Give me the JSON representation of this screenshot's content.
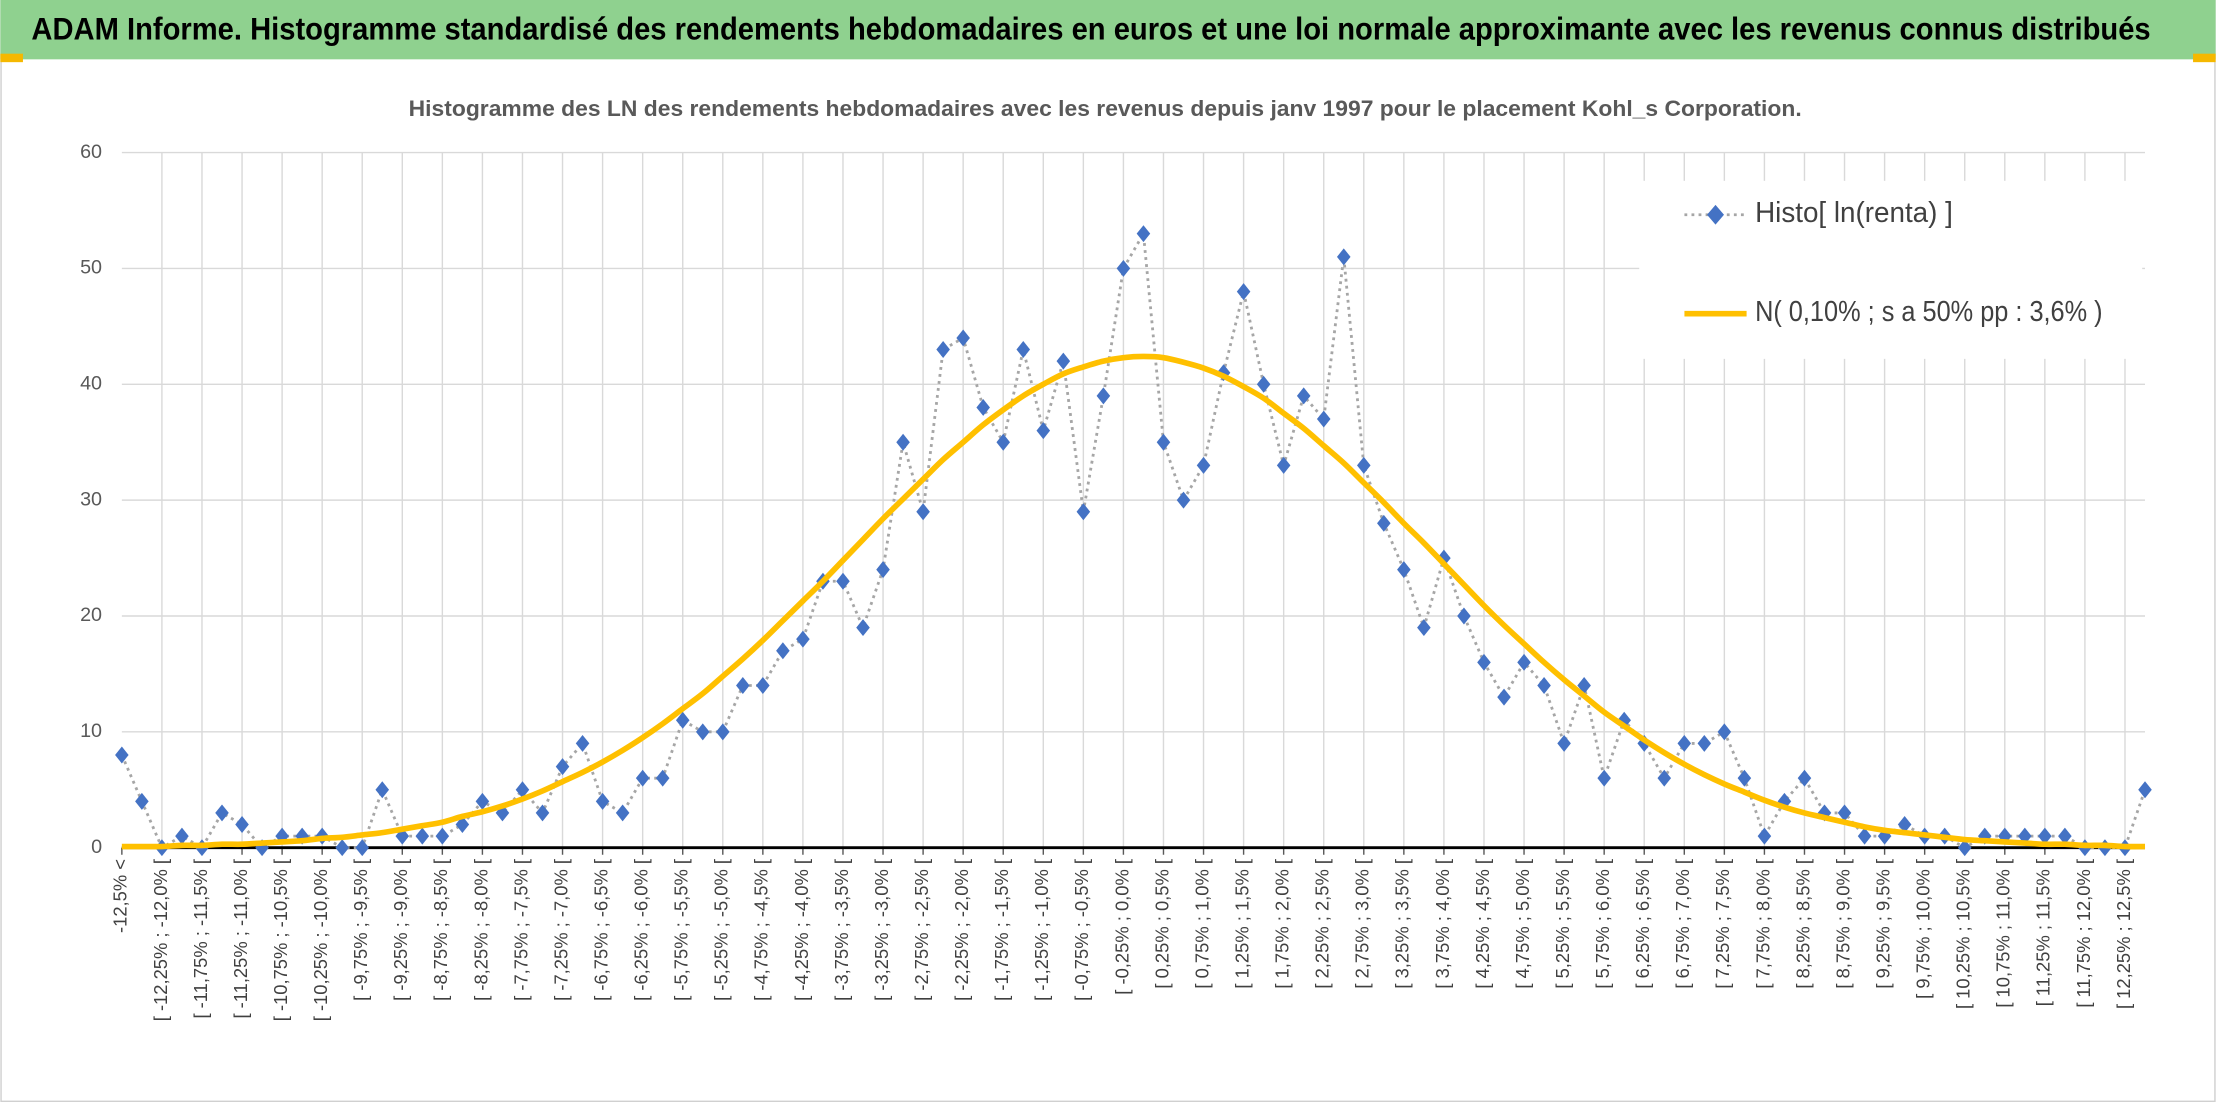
{
  "chart_data": {
    "type": "line",
    "header": "ADAM Informe. Histogramme standardisé des rendements hebdomadaires en euros et une loi normale approximante avec les revenus connus distribués",
    "title": "Histogramme des LN des rendements hebdomadaires avec les revenus depuis janv 1997 pour le placement Kohl_s Corporation.",
    "categories": [
      "-12,5% <",
      null,
      "[ -12,25% ; -12,0% [",
      null,
      "[ -11,75% ; -11,5% [",
      null,
      "[ -11,25% ; -11,0% [",
      null,
      "[ -10,75% ; -10,5% [",
      null,
      "[ -10,25% ; -10,0% [",
      null,
      "[ -9,75% ; -9,5% [",
      null,
      "[ -9,25% ; -9,0% [",
      null,
      "[ -8,75% ; -8,5% [",
      null,
      "[ -8,25% ; -8,0% [",
      null,
      "[ -7,75% ; -7,5% [",
      null,
      "[ -7,25% ; -7,0% [",
      null,
      "[ -6,75% ; -6,5% [",
      null,
      "[ -6,25% ; -6,0% [",
      null,
      "[ -5,75% ; -5,5% [",
      null,
      "[ -5,25% ; -5,0% [",
      null,
      "[ -4,75% ; -4,5% [",
      null,
      "[ -4,25% ; -4,0% [",
      null,
      "[ -3,75% ; -3,5% [",
      null,
      "[ -3,25% ; -3,0% [",
      null,
      "[ -2,75% ; -2,5% [",
      null,
      "[ -2,25% ; -2,0% [",
      null,
      "[ -1,75% ; -1,5% [",
      null,
      "[ -1,25% ; -1,0% [",
      null,
      "[ -0,75% ; -0,5% [",
      null,
      "[ -0,25% ; 0,0% [",
      null,
      "[ 0,25% ; 0,5% [",
      null,
      "[ 0,75% ; 1,0% [",
      null,
      "[ 1,25% ; 1,5% [",
      null,
      "[ 1,75% ; 2,0% [",
      null,
      "[ 2,25% ; 2,5% [",
      null,
      "[ 2,75% ; 3,0% [",
      null,
      "[ 3,25% ; 3,5% [",
      null,
      "[ 3,75% ; 4,0% [",
      null,
      "[ 4,25% ; 4,5% [",
      null,
      "[ 4,75% ; 5,0% [",
      null,
      "[ 5,25% ; 5,5% [",
      null,
      "[ 5,75% ; 6,0% [",
      null,
      "[ 6,25% ; 6,5% [",
      null,
      "[ 6,75% ; 7,0% [",
      null,
      "[ 7,25% ; 7,5% [",
      null,
      "[ 7,75% ; 8,0% [",
      null,
      "[ 8,25% ; 8,5% [",
      null,
      "[ 8,75% ; 9,0% [",
      null,
      "[ 9,25% ; 9,5% [",
      null,
      "[ 9,75% ; 10,0% [",
      null,
      "[ 10,25% ; 10,5% [",
      null,
      "[ 10,75% ; 11,0% [",
      null,
      "[ 11,25% ; 11,5% [",
      null,
      "[ 11,75% ; 12,0% [",
      null,
      "[ 12,25% ; 12,5% [",
      null
    ],
    "series": [
      {
        "name": "Histo[ ln(renta) ]",
        "color": "#4472c4",
        "line_color": "#a6a6a6",
        "line_style": "dotted",
        "marker": "diamond",
        "values": [
          8,
          4,
          0,
          1,
          0,
          3,
          2,
          0,
          1,
          1,
          1,
          0,
          0,
          5,
          1,
          1,
          1,
          2,
          4,
          3,
          5,
          3,
          7,
          9,
          4,
          3,
          6,
          6,
          11,
          10,
          10,
          14,
          14,
          17,
          18,
          23,
          23,
          19,
          24,
          35,
          29,
          43,
          44,
          38,
          35,
          43,
          36,
          42,
          29,
          39,
          50,
          53,
          35,
          30,
          33,
          41,
          48,
          40,
          33,
          39,
          37,
          51,
          33,
          28,
          24,
          19,
          25,
          20,
          16,
          13,
          16,
          14,
          9,
          14,
          6,
          11,
          9,
          6,
          9,
          9,
          10,
          6,
          1,
          4,
          6,
          3,
          3,
          1,
          1,
          2,
          1,
          1,
          0,
          1,
          1,
          1,
          1,
          1,
          0,
          0,
          0,
          5
        ]
      },
      {
        "name": "N( 0,10% ; s a 50% pp : 3,6% )",
        "color": "#ffc000",
        "line_style": "solid",
        "marker": "none",
        "values": [
          0.1,
          0.1,
          0.1,
          0.2,
          0.2,
          0.3,
          0.3,
          0.4,
          0.5,
          0.6,
          0.8,
          0.9,
          1.1,
          1.3,
          1.6,
          1.9,
          2.2,
          2.7,
          3.1,
          3.6,
          4.2,
          4.9,
          5.7,
          6.5,
          7.4,
          8.4,
          9.5,
          10.7,
          12.0,
          13.3,
          14.8,
          16.3,
          17.9,
          19.6,
          21.3,
          23.0,
          24.8,
          26.6,
          28.4,
          30.1,
          31.8,
          33.5,
          35.0,
          36.5,
          37.8,
          39.0,
          40.0,
          40.9,
          41.5,
          42.0,
          42.3,
          42.4,
          42.3,
          41.9,
          41.4,
          40.7,
          39.8,
          38.8,
          37.5,
          36.2,
          34.7,
          33.2,
          31.5,
          29.8,
          28.0,
          26.3,
          24.5,
          22.7,
          20.9,
          19.2,
          17.6,
          16.0,
          14.5,
          13.1,
          11.7,
          10.5,
          9.3,
          8.2,
          7.2,
          6.3,
          5.5,
          4.8,
          4.1,
          3.5,
          3.0,
          2.6,
          2.2,
          1.8,
          1.5,
          1.3,
          1.1,
          0.9,
          0.7,
          0.6,
          0.5,
          0.4,
          0.3,
          0.3,
          0.2,
          0.2,
          0.1,
          0.1
        ]
      }
    ],
    "ylim": [
      0,
      60
    ],
    "yticks": [
      0,
      10,
      20,
      30,
      40,
      50,
      60
    ],
    "grid": true,
    "legend": "top-right",
    "header_color": "#8fd18f"
  }
}
